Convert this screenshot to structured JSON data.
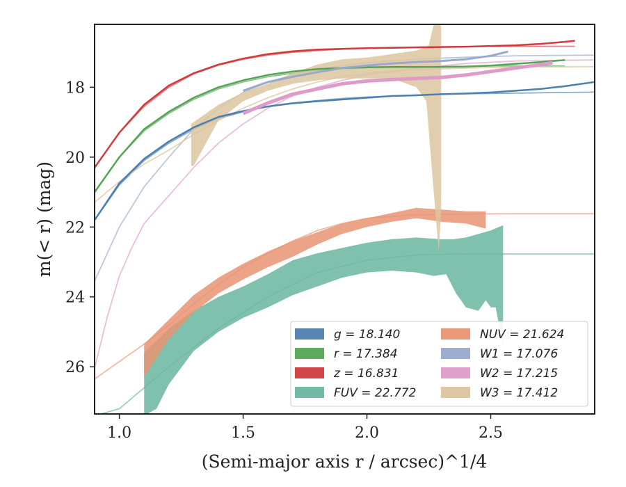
{
  "chart_data": {
    "type": "line",
    "xlabel": "(Semi-major axis r / arcsec)^1/4",
    "ylabel": "m(< r) (mag)",
    "xlim": [
      0.9,
      2.92
    ],
    "ylim": [
      27.35,
      16.2
    ],
    "xticks": [
      "1.0",
      "1.5",
      "2.0",
      "2.5"
    ],
    "yticks": [
      "18",
      "20",
      "22",
      "24",
      "26"
    ],
    "legend_position": "lower-right",
    "legend": [
      {
        "text": "g = 18.140",
        "color": "#4c7fb0"
      },
      {
        "text": "r = 17.384",
        "color": "#55a455"
      },
      {
        "text": "z = 16.831",
        "color": "#d03c3e"
      },
      {
        "text": "FUV = 22.772",
        "color": "#6ab6a0"
      },
      {
        "text": "NUV = 21.624",
        "color": "#e99473"
      },
      {
        "text": "W1 = 17.076",
        "color": "#98a9cc"
      },
      {
        "text": "W2 = 17.215",
        "color": "#de9bc9"
      },
      {
        "text": "W3 = 17.412",
        "color": "#dcc59f"
      }
    ],
    "series": [
      {
        "name": "g",
        "color": "#4c7fb0",
        "width": 2.5,
        "x": [
          0.9,
          1.0,
          1.1,
          1.2,
          1.3,
          1.4,
          1.5,
          1.6,
          1.7,
          1.8,
          1.9,
          2.0,
          2.1,
          2.2,
          2.3,
          2.4,
          2.5,
          2.6,
          2.7,
          2.8,
          2.92
        ],
        "y": [
          21.8,
          20.75,
          20.05,
          19.55,
          19.15,
          18.85,
          18.68,
          18.55,
          18.46,
          18.4,
          18.35,
          18.3,
          18.25,
          18.23,
          18.2,
          18.18,
          18.15,
          18.1,
          18.05,
          17.97,
          17.85
        ],
        "model_y": [
          21.8,
          20.8,
          20.1,
          19.6,
          19.2,
          18.9,
          18.7,
          18.55,
          18.45,
          18.38,
          18.32,
          18.28,
          18.25,
          18.22,
          18.2,
          18.19,
          18.18,
          18.17,
          18.16,
          18.15,
          18.14
        ]
      },
      {
        "name": "r",
        "color": "#55a455",
        "width": 2.5,
        "x": [
          0.9,
          1.0,
          1.1,
          1.2,
          1.3,
          1.4,
          1.5,
          1.6,
          1.7,
          1.8,
          1.9,
          2.0,
          2.1,
          2.2,
          2.3,
          2.4,
          2.5,
          2.6,
          2.7,
          2.8
        ],
        "y": [
          21.0,
          20.0,
          19.2,
          18.7,
          18.3,
          18.0,
          17.8,
          17.65,
          17.55,
          17.48,
          17.45,
          17.43,
          17.42,
          17.42,
          17.42,
          17.41,
          17.38,
          17.33,
          17.28,
          17.22
        ],
        "model_y": [
          21.0,
          20.0,
          19.25,
          18.75,
          18.35,
          18.05,
          17.85,
          17.7,
          17.6,
          17.52,
          17.47,
          17.44,
          17.42,
          17.41,
          17.4,
          17.4,
          17.39,
          17.39,
          17.39,
          17.39
        ]
      },
      {
        "name": "z",
        "color": "#d03c3e",
        "width": 2.5,
        "x": [
          0.9,
          1.0,
          1.1,
          1.2,
          1.3,
          1.4,
          1.5,
          1.6,
          1.7,
          1.8,
          1.9,
          2.0,
          2.1,
          2.2,
          2.3,
          2.4,
          2.5,
          2.6,
          2.7,
          2.8,
          2.84
        ],
        "y": [
          20.3,
          19.3,
          18.5,
          17.95,
          17.6,
          17.35,
          17.18,
          17.05,
          16.97,
          16.92,
          16.9,
          16.88,
          16.87,
          16.86,
          16.85,
          16.84,
          16.82,
          16.8,
          16.76,
          16.7,
          16.67
        ],
        "model_y": [
          20.3,
          19.3,
          18.55,
          18.0,
          17.62,
          17.37,
          17.2,
          17.08,
          17.0,
          16.95,
          16.91,
          16.88,
          16.86,
          16.85,
          16.84,
          16.84,
          16.83,
          16.83,
          16.83,
          16.83,
          16.83
        ]
      },
      {
        "name": "W1",
        "color": "#98a9cc",
        "width": 3,
        "x": [
          1.5,
          1.6,
          1.7,
          1.8,
          1.9,
          2.0,
          2.1,
          2.2,
          2.3,
          2.4,
          2.5,
          2.57
        ],
        "y": [
          18.1,
          17.85,
          17.7,
          17.57,
          17.45,
          17.38,
          17.32,
          17.28,
          17.25,
          17.2,
          17.1,
          16.98
        ],
        "model_x": [
          0.9,
          1.0,
          1.1,
          1.2,
          1.3,
          1.4,
          1.5,
          1.6,
          1.7,
          1.8,
          1.9,
          2.0,
          2.2,
          2.4,
          2.6,
          2.92
        ],
        "model_y": [
          23.55,
          22.0,
          20.85,
          20.0,
          19.2,
          18.6,
          18.15,
          17.85,
          17.65,
          17.5,
          17.38,
          17.3,
          17.2,
          17.14,
          17.1,
          17.08
        ]
      },
      {
        "name": "W2",
        "color": "#de9bc9",
        "width": 5,
        "x": [
          1.5,
          1.6,
          1.7,
          1.8,
          1.9,
          2.0,
          2.1,
          2.2,
          2.3,
          2.4,
          2.5,
          2.6,
          2.7,
          2.75
        ],
        "y": [
          18.75,
          18.45,
          18.2,
          18.05,
          17.9,
          17.82,
          17.78,
          17.75,
          17.72,
          17.65,
          17.55,
          17.45,
          17.35,
          17.3
        ],
        "model_x": [
          0.9,
          0.95,
          1.0,
          1.05,
          1.1,
          1.2,
          1.3,
          1.4,
          1.5,
          1.6,
          1.7,
          1.8,
          1.9,
          2.0,
          2.2,
          2.4,
          2.6,
          2.92
        ],
        "model_y": [
          26.05,
          24.6,
          23.4,
          22.6,
          21.9,
          21.1,
          20.3,
          19.6,
          19.05,
          18.6,
          18.25,
          18.0,
          17.8,
          17.65,
          17.45,
          17.32,
          17.25,
          17.22
        ]
      },
      {
        "name": "FUV",
        "color": "#6ab6a0",
        "width": 2,
        "x": [
          1.1,
          1.2,
          1.3,
          1.4,
          1.5,
          1.6,
          1.7,
          1.8,
          1.9,
          2.0,
          2.1,
          2.2,
          2.3,
          2.4,
          2.5,
          2.55
        ],
        "y": [
          26.5,
          25.6,
          25.0,
          24.5,
          24.0,
          23.6,
          23.25,
          23.0,
          22.9,
          22.85,
          22.8,
          22.8,
          22.8,
          22.8,
          22.8,
          22.8
        ],
        "model_x": [
          0.9,
          1.0,
          1.2,
          1.4,
          1.6,
          1.8,
          2.0,
          2.2,
          2.4,
          2.6,
          2.8,
          2.92
        ],
        "model_y": [
          27.4,
          27.2,
          26.0,
          24.9,
          24.0,
          23.3,
          22.95,
          22.8,
          22.77,
          22.77,
          22.77,
          22.77
        ]
      },
      {
        "name": "NUV",
        "color": "#e99473",
        "width": 2,
        "x": [
          1.1,
          1.2,
          1.3,
          1.4,
          1.5,
          1.6,
          1.7,
          1.8,
          1.9,
          2.0,
          2.1,
          2.2,
          2.3,
          2.4,
          2.48
        ],
        "y": [
          25.8,
          24.95,
          24.2,
          23.65,
          23.2,
          22.9,
          22.65,
          22.35,
          22.1,
          21.85,
          21.7,
          21.55,
          21.6,
          21.7,
          21.75
        ],
        "model_x": [
          0.9,
          1.0,
          1.1,
          1.2,
          1.3,
          1.4,
          1.5,
          1.6,
          1.7,
          1.8,
          1.9,
          2.0,
          2.2,
          2.4,
          2.6,
          2.92
        ],
        "model_y": [
          26.35,
          25.85,
          25.35,
          24.8,
          24.2,
          23.65,
          23.15,
          22.75,
          22.4,
          22.1,
          21.9,
          21.75,
          21.65,
          21.63,
          21.62,
          21.62
        ]
      }
    ],
    "bands": [
      {
        "name": "FUV",
        "color": "#6ab6a0",
        "upper": [
          [
            1.1,
            25.6
          ],
          [
            1.2,
            24.9
          ],
          [
            1.3,
            24.4
          ],
          [
            1.4,
            24.0
          ],
          [
            1.5,
            23.7
          ],
          [
            1.6,
            23.35
          ],
          [
            1.7,
            22.95
          ],
          [
            1.8,
            22.75
          ],
          [
            1.9,
            22.6
          ],
          [
            2.0,
            22.45
          ],
          [
            2.1,
            22.35
          ],
          [
            2.2,
            22.3
          ],
          [
            2.3,
            22.35
          ],
          [
            2.35,
            22.35
          ],
          [
            2.4,
            22.3
          ],
          [
            2.5,
            22.1
          ],
          [
            2.55,
            21.95
          ]
        ],
        "lower": [
          [
            2.55,
            25.4
          ],
          [
            2.52,
            24.3
          ],
          [
            2.5,
            24.3
          ],
          [
            2.48,
            24.1
          ],
          [
            2.45,
            24.4
          ],
          [
            2.4,
            24.3
          ],
          [
            2.36,
            23.9
          ],
          [
            2.32,
            23.35
          ],
          [
            2.27,
            23.4
          ],
          [
            2.2,
            23.3
          ],
          [
            2.1,
            23.25
          ],
          [
            2.0,
            23.3
          ],
          [
            1.9,
            23.45
          ],
          [
            1.8,
            23.7
          ],
          [
            1.7,
            23.95
          ],
          [
            1.6,
            24.3
          ],
          [
            1.5,
            24.6
          ],
          [
            1.4,
            25.0
          ],
          [
            1.3,
            25.55
          ],
          [
            1.2,
            26.5
          ],
          [
            1.15,
            27.2
          ],
          [
            1.1,
            27.4
          ]
        ]
      },
      {
        "name": "NUV",
        "color": "#e99473",
        "upper": [
          [
            1.1,
            25.35
          ],
          [
            1.2,
            24.65
          ],
          [
            1.3,
            23.95
          ],
          [
            1.4,
            23.45
          ],
          [
            1.5,
            23.05
          ],
          [
            1.6,
            22.7
          ],
          [
            1.7,
            22.4
          ],
          [
            1.8,
            22.15
          ],
          [
            1.9,
            21.9
          ],
          [
            2.0,
            21.75
          ],
          [
            2.1,
            21.6
          ],
          [
            2.2,
            21.45
          ],
          [
            2.3,
            21.5
          ],
          [
            2.4,
            21.55
          ],
          [
            2.48,
            21.55
          ]
        ],
        "lower": [
          [
            2.48,
            22.05
          ],
          [
            2.4,
            21.9
          ],
          [
            2.3,
            21.85
          ],
          [
            2.2,
            21.75
          ],
          [
            2.1,
            21.85
          ],
          [
            2.0,
            22.0
          ],
          [
            1.9,
            22.2
          ],
          [
            1.8,
            22.5
          ],
          [
            1.7,
            22.85
          ],
          [
            1.6,
            23.15
          ],
          [
            1.5,
            23.5
          ],
          [
            1.4,
            23.9
          ],
          [
            1.3,
            24.45
          ],
          [
            1.2,
            25.2
          ],
          [
            1.1,
            26.3
          ]
        ]
      },
      {
        "name": "W3",
        "color": "#dcc59f",
        "upper": [
          [
            1.29,
            19.05
          ],
          [
            1.4,
            18.5
          ],
          [
            1.5,
            18.15
          ],
          [
            1.6,
            17.9
          ],
          [
            1.7,
            17.6
          ],
          [
            1.8,
            17.35
          ],
          [
            1.9,
            17.2
          ],
          [
            2.0,
            17.15
          ],
          [
            2.1,
            17.05
          ],
          [
            2.2,
            16.95
          ],
          [
            2.25,
            16.8
          ],
          [
            2.27,
            16.2
          ],
          [
            2.3,
            16.2
          ],
          [
            2.3,
            21.5
          ],
          [
            2.29,
            22.7
          ]
        ],
        "lower": [
          [
            2.29,
            22.7
          ],
          [
            2.27,
            21.0
          ],
          [
            2.24,
            18.4
          ],
          [
            2.2,
            18.0
          ],
          [
            2.1,
            17.75
          ],
          [
            2.0,
            17.75
          ],
          [
            1.9,
            17.75
          ],
          [
            1.8,
            17.8
          ],
          [
            1.7,
            17.9
          ],
          [
            1.6,
            18.1
          ],
          [
            1.5,
            18.4
          ],
          [
            1.4,
            18.95
          ],
          [
            1.3,
            20.25
          ],
          [
            1.29,
            20.25
          ]
        ],
        "model_x": [
          0.9,
          1.0,
          1.1,
          1.2,
          1.3,
          1.4,
          1.5,
          1.6,
          1.7,
          1.8,
          1.9,
          2.0,
          2.2,
          2.4,
          2.6,
          2.92
        ],
        "model_y": [
          21.3,
          20.7,
          20.2,
          19.8,
          19.35,
          18.95,
          18.6,
          18.3,
          18.05,
          17.85,
          17.7,
          17.6,
          17.5,
          17.45,
          17.42,
          17.41
        ]
      }
    ]
  }
}
